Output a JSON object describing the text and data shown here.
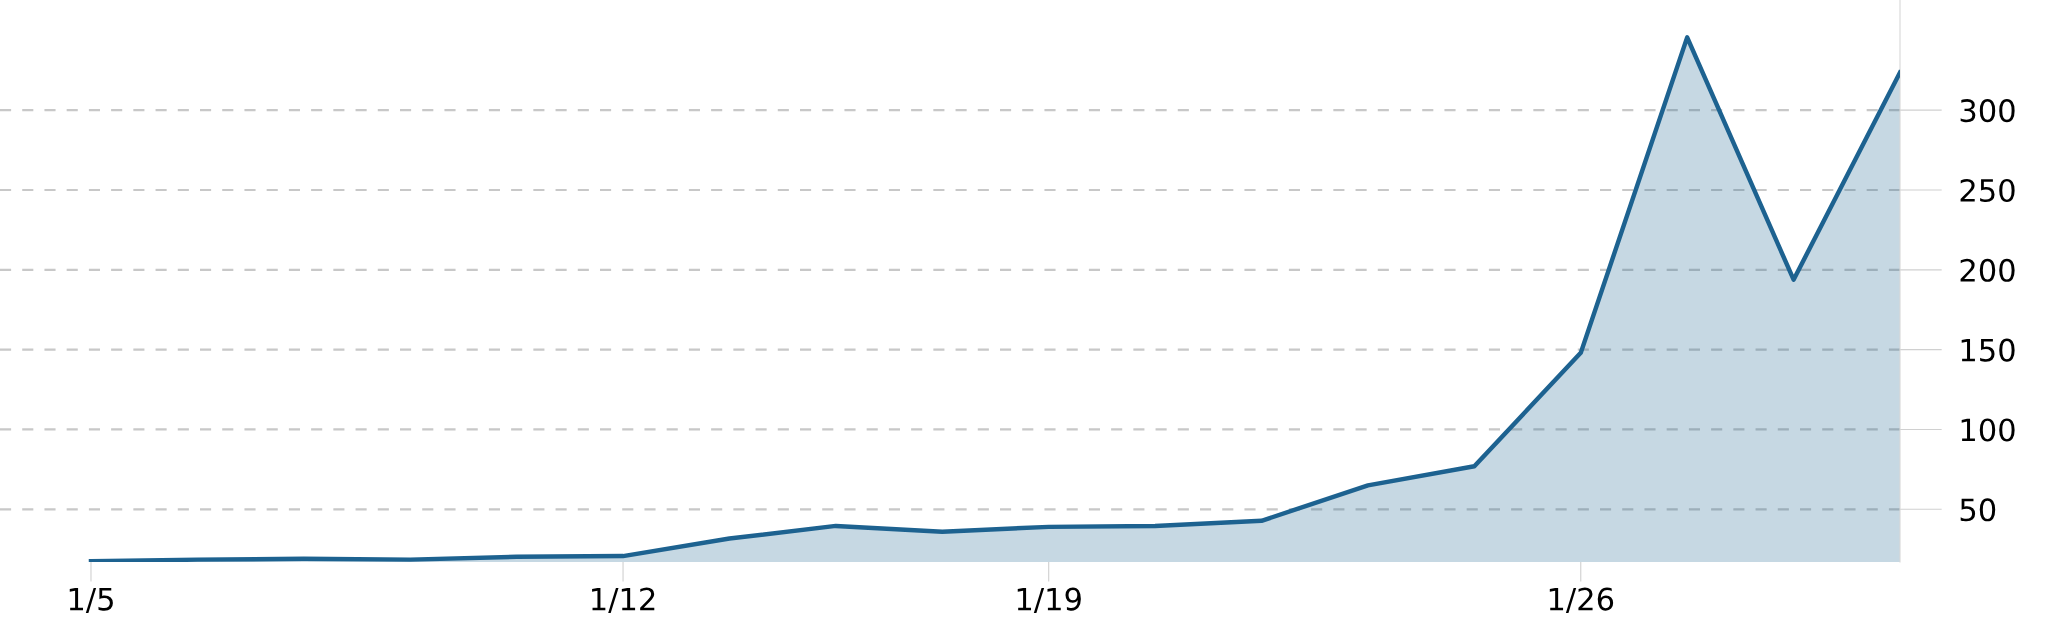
{
  "chart_data": {
    "type": "area",
    "categories": [
      "1/5",
      null,
      null,
      null,
      null,
      "1/12",
      null,
      null,
      null,
      "1/19",
      null,
      null,
      null,
      null,
      "1/26",
      null,
      null,
      null
    ],
    "series": [
      {
        "color": "#1d6290",
        "values": [
          17.5,
          18.5,
          19,
          18.5,
          20.3,
          20.7,
          31.7,
          39.6,
          36,
          39,
          39.5,
          42.8,
          65,
          77,
          148,
          345.6,
          193.8,
          323.6
        ]
      }
    ],
    "ylim": [
      17,
      369
    ],
    "yticks": [
      50,
      100,
      150,
      200,
      250,
      300
    ],
    "grid": "y",
    "legend": false
  }
}
